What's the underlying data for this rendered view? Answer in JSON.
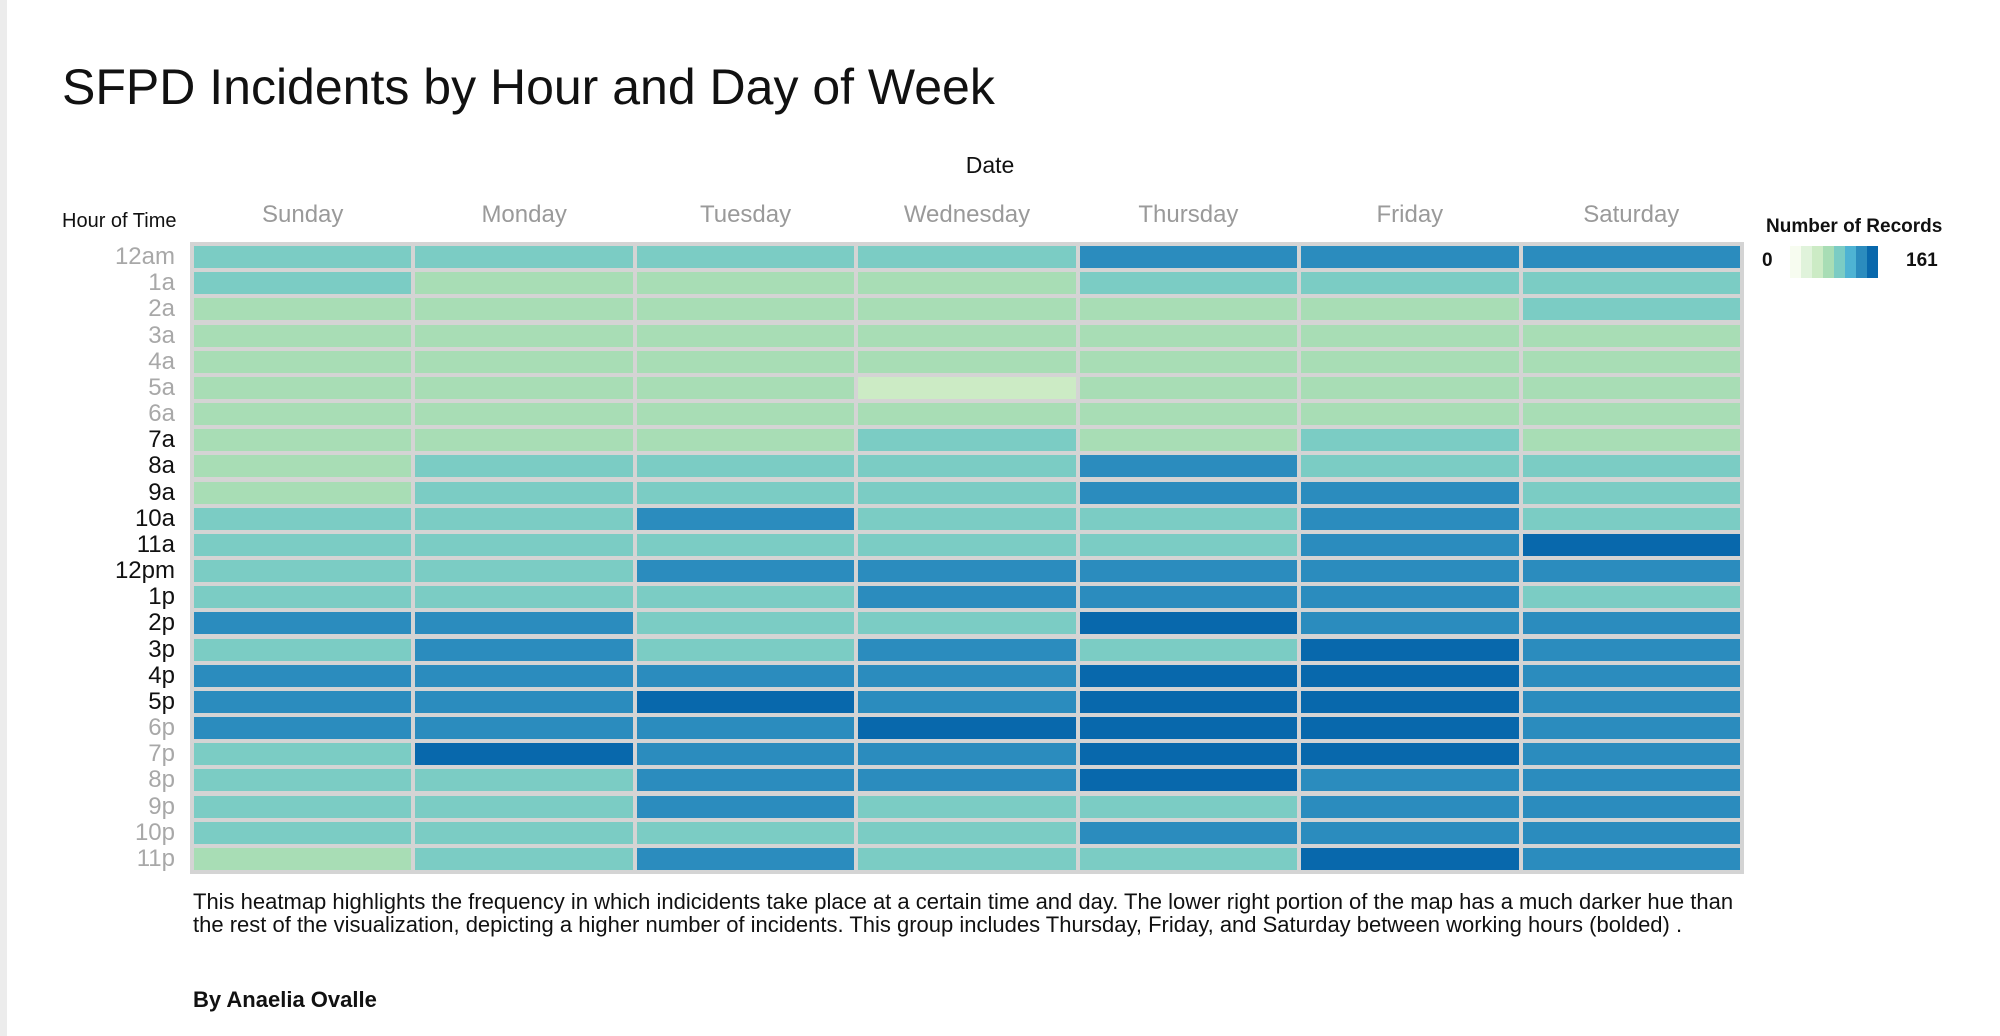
{
  "title": "SFPD Incidents by Hour and Day of Week",
  "chart_data": {
    "type": "heatmap",
    "title": "SFPD Incidents by Hour and Day of Week",
    "column_header": "Date",
    "row_header": "Hour of Time",
    "columns": [
      "Sunday",
      "Monday",
      "Tuesday",
      "Wednesday",
      "Thursday",
      "Friday",
      "Saturday"
    ],
    "rows": [
      "12am",
      "1a",
      "2a",
      "3a",
      "4a",
      "5a",
      "6a",
      "7a",
      "8a",
      "9a",
      "10a",
      "11a",
      "12pm",
      "1p",
      "2p",
      "3p",
      "4p",
      "5p",
      "6p",
      "7p",
      "8p",
      "9p",
      "10p",
      "11p"
    ],
    "bold_rows": [
      "7a",
      "8a",
      "9a",
      "10a",
      "11a",
      "12pm",
      "1p",
      "2p",
      "3p",
      "4p",
      "5p"
    ],
    "values": [
      [
        95,
        95,
        95,
        95,
        125,
        125,
        125
      ],
      [
        95,
        70,
        75,
        70,
        95,
        95,
        95
      ],
      [
        70,
        70,
        70,
        70,
        70,
        70,
        95
      ],
      [
        70,
        70,
        70,
        70,
        70,
        70,
        70
      ],
      [
        70,
        70,
        70,
        70,
        70,
        70,
        70
      ],
      [
        70,
        70,
        70,
        50,
        70,
        70,
        70
      ],
      [
        70,
        70,
        70,
        70,
        70,
        70,
        70
      ],
      [
        70,
        70,
        70,
        95,
        70,
        95,
        70
      ],
      [
        70,
        95,
        95,
        95,
        125,
        95,
        95
      ],
      [
        70,
        95,
        95,
        95,
        125,
        125,
        95
      ],
      [
        95,
        95,
        125,
        95,
        95,
        125,
        95
      ],
      [
        95,
        95,
        95,
        95,
        95,
        125,
        155
      ],
      [
        95,
        95,
        125,
        125,
        125,
        125,
        125
      ],
      [
        95,
        95,
        95,
        125,
        125,
        125,
        95
      ],
      [
        125,
        125,
        95,
        95,
        155,
        125,
        125
      ],
      [
        95,
        125,
        95,
        125,
        95,
        155,
        125
      ],
      [
        125,
        125,
        125,
        125,
        155,
        155,
        125
      ],
      [
        125,
        125,
        155,
        125,
        155,
        155,
        125
      ],
      [
        125,
        125,
        125,
        155,
        155,
        155,
        125
      ],
      [
        95,
        155,
        125,
        125,
        155,
        155,
        125
      ],
      [
        95,
        95,
        125,
        125,
        155,
        125,
        125
      ],
      [
        95,
        95,
        125,
        95,
        95,
        125,
        125
      ],
      [
        95,
        95,
        95,
        95,
        125,
        125,
        125
      ],
      [
        70,
        95,
        125,
        95,
        95,
        155,
        125
      ]
    ],
    "color_scale": {
      "title": "Number of Records",
      "min": 0,
      "max": 161,
      "min_label": "0",
      "max_label": "161",
      "colors": [
        "#f7fcf0",
        "#e0f3db",
        "#ccebc5",
        "#a8ddb5",
        "#7bccc4",
        "#4eb3d3",
        "#2b8cbe",
        "#0868ac"
      ]
    },
    "legend_position": "top-right"
  },
  "description": "This heatmap highlights the frequency in which indicidents take place at a certain time and day. The lower right portion of the map has a much darker hue than the rest of the visualization, depicting a higher number of incidents. This group includes Thursday, Friday, and Saturday between working hours (bolded) .",
  "byline": "By Anaelia Ovalle"
}
